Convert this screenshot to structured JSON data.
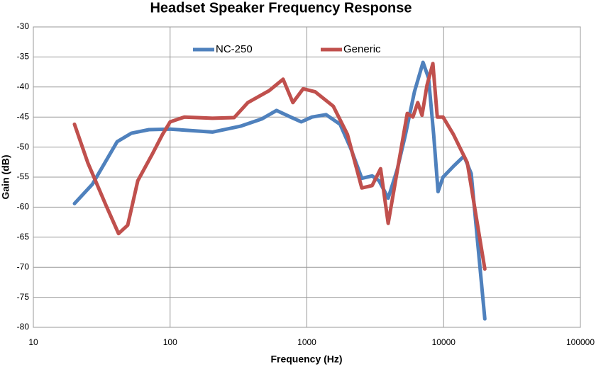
{
  "chart_data": {
    "type": "line",
    "title": "Headset Speaker Frequency Response",
    "x_label": "Frequency (Hz)",
    "y_label": "Gain (dB)",
    "xscale": "log",
    "grid": true,
    "xlim": [
      10,
      100000
    ],
    "xticks": [
      10,
      100,
      1000,
      10000,
      100000
    ],
    "ylim": [
      -80,
      -30
    ],
    "yticks": [
      -30,
      -35,
      -40,
      -45,
      -50,
      -55,
      -60,
      -65,
      -70,
      -75,
      -80
    ],
    "series": [
      {
        "name": "NC-250",
        "color": "#4f81bd",
        "x": [
          20,
          27,
          41,
          52,
          70,
          100,
          204,
          330,
          470,
          600,
          760,
          910,
          1090,
          1380,
          1750,
          2100,
          2520,
          3000,
          3370,
          3930,
          4570,
          5260,
          6120,
          7070,
          7760,
          8450,
          9100,
          9900,
          11800,
          14100,
          15900,
          20000
        ],
        "values": [
          -59.4,
          -56.2,
          -49.1,
          -47.7,
          -47.1,
          -47,
          -47.5,
          -46.5,
          -45.3,
          -43.9,
          -45,
          -45.8,
          -45,
          -44.6,
          -46.2,
          -50.3,
          -55.2,
          -54.8,
          -55.6,
          -58.5,
          -53.8,
          -47.9,
          -40.8,
          -35.9,
          -38.5,
          -47.9,
          -57.4,
          -55,
          -53.2,
          -51.5,
          -54.4,
          -78.6
        ]
      },
      {
        "name": "Generic",
        "color": "#c0504d",
        "x": [
          20,
          25,
          34,
          42,
          49,
          58,
          74,
          88,
          100,
          127,
          204,
          294,
          370,
          530,
          670,
          790,
          940,
          1150,
          1560,
          1980,
          2520,
          3000,
          3460,
          3930,
          4690,
          5420,
          5960,
          6470,
          6950,
          7560,
          8340,
          8990,
          9900,
          11800,
          14900,
          20000
        ],
        "values": [
          -46.2,
          -52.6,
          -59.7,
          -64.4,
          -63,
          -55.6,
          -51.2,
          -47.9,
          -45.8,
          -45,
          -45.2,
          -45.1,
          -42.6,
          -40.6,
          -38.7,
          -42.6,
          -40.3,
          -40.8,
          -43.2,
          -47.9,
          -56.8,
          -56.4,
          -53.6,
          -62.7,
          -52.6,
          -44.4,
          -45,
          -42.6,
          -44.7,
          -39.7,
          -36.1,
          -45,
          -45,
          -47.9,
          -52.6,
          -70.3
        ]
      }
    ]
  }
}
